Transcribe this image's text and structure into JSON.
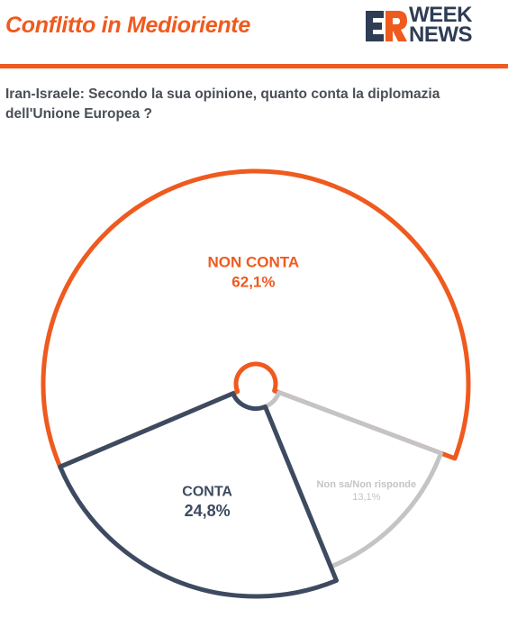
{
  "header": {
    "title": "Conflitto in Medioriente",
    "logo_mark": "ER",
    "logo_word_1": "WEEK",
    "logo_word_2": "NEWS"
  },
  "question": "Iran-Israele: Secondo la sua opinione, quanto conta la diplomazia dell'Unione Europea ?",
  "colors": {
    "accent": "#ef5a1e",
    "navy": "#2e3d55",
    "gray": "#c4c4c4",
    "text": "#4a4f57"
  },
  "chart_data": {
    "type": "pie",
    "title": "",
    "slices": [
      {
        "label": "NON CONTA",
        "value": 62.1,
        "display": "62,1%",
        "color": "#ef5a1e"
      },
      {
        "label": "Non sa/Non risponde",
        "value": 13.1,
        "display": "13,1%",
        "color": "#c4c4c4"
      },
      {
        "label": "CONTA",
        "value": 24.8,
        "display": "24,8%",
        "color": "#3d4a60"
      }
    ]
  }
}
